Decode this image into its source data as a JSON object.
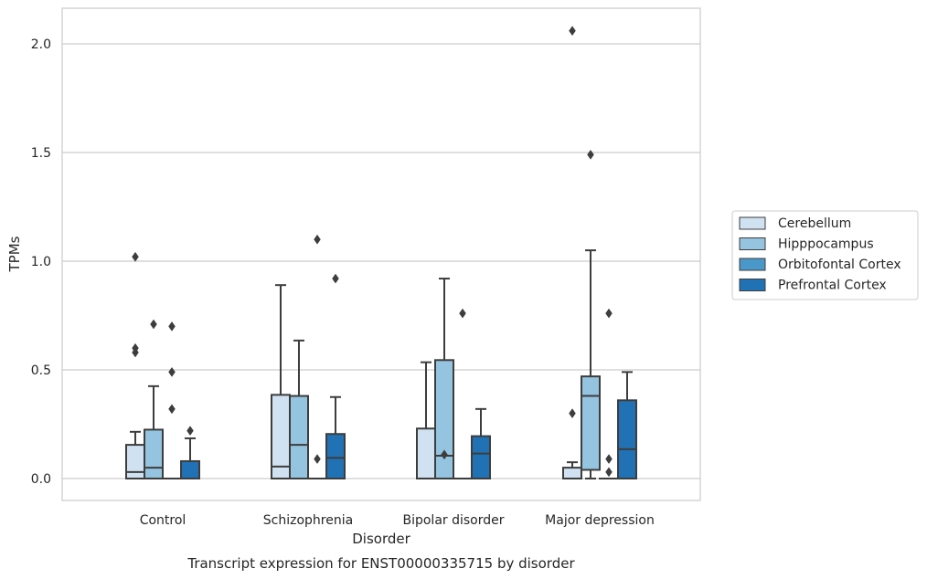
{
  "chart_data": {
    "type": "box",
    "title": "",
    "caption": "Transcript expression for ENST00000335715 by disorder",
    "xlabel": "Disorder",
    "ylabel": "TPMs",
    "ylim": [
      -0.1,
      2.165
    ],
    "yticks": [
      "0.0",
      "0.5",
      "1.0",
      "1.5",
      "2.0"
    ],
    "ytick_values": [
      0.0,
      0.5,
      1.0,
      1.5,
      2.0
    ],
    "grid": "horizontal",
    "legend_position": "right",
    "categories": [
      "Control",
      "Schizophrenia",
      "Bipolar disorder",
      "Major depression"
    ],
    "series": [
      {
        "name": "Cerebellum",
        "color": "#d0e1f2",
        "boxes": [
          {
            "q1": 0.0,
            "median": 0.03,
            "q3": 0.155,
            "whislo": 0.0,
            "whishi": 0.215,
            "fliers": [
              0.58,
              0.6,
              1.02
            ]
          },
          {
            "q1": 0.0,
            "median": 0.055,
            "q3": 0.385,
            "whislo": 0.0,
            "whishi": 0.89,
            "fliers": []
          },
          {
            "q1": 0.0,
            "median": 0.0,
            "q3": 0.23,
            "whislo": 0.0,
            "whishi": 0.535,
            "fliers": []
          },
          {
            "q1": 0.0,
            "median": 0.0,
            "q3": 0.05,
            "whislo": 0.0,
            "whishi": 0.075,
            "fliers": [
              0.3,
              2.06
            ]
          }
        ]
      },
      {
        "name": "Hipppocampus",
        "color": "#94c4df",
        "boxes": [
          {
            "q1": 0.0,
            "median": 0.05,
            "q3": 0.225,
            "whislo": 0.0,
            "whishi": 0.425,
            "fliers": [
              0.71
            ]
          },
          {
            "q1": 0.0,
            "median": 0.155,
            "q3": 0.38,
            "whislo": 0.0,
            "whishi": 0.635,
            "fliers": []
          },
          {
            "q1": 0.0,
            "median": 0.105,
            "q3": 0.545,
            "whislo": 0.0,
            "whishi": 0.92,
            "fliers": [
              0.11
            ]
          },
          {
            "q1": 0.04,
            "median": 0.38,
            "q3": 0.47,
            "whislo": 0.0,
            "whishi": 1.05,
            "fliers": [
              1.49
            ]
          }
        ]
      },
      {
        "name": "Orbitofontal Cortex",
        "color": "#4a98c9",
        "boxes": [
          {
            "q1": 0.0,
            "median": 0.0,
            "q3": 0.0,
            "whislo": 0.0,
            "whishi": 0.0,
            "fliers": [
              0.32,
              0.49,
              0.7
            ]
          },
          {
            "q1": 0.0,
            "median": 0.0,
            "q3": 0.0,
            "whislo": 0.0,
            "whishi": 0.0,
            "fliers": [
              0.09,
              1.1
            ]
          },
          {
            "q1": 0.0,
            "median": 0.0,
            "q3": 0.0,
            "whislo": 0.0,
            "whishi": 0.0,
            "fliers": [
              0.76
            ]
          },
          {
            "q1": 0.0,
            "median": 0.0,
            "q3": 0.0,
            "whislo": 0.0,
            "whishi": 0.0,
            "fliers": [
              0.03,
              0.09,
              0.76
            ]
          }
        ]
      },
      {
        "name": "Prefrontal Cortex",
        "color": "#2171b5",
        "boxes": [
          {
            "q1": 0.0,
            "median": 0.0,
            "q3": 0.08,
            "whislo": 0.0,
            "whishi": 0.185,
            "fliers": [
              0.22
            ]
          },
          {
            "q1": 0.0,
            "median": 0.095,
            "q3": 0.205,
            "whislo": 0.0,
            "whishi": 0.375,
            "fliers": [
              0.92
            ]
          },
          {
            "q1": 0.0,
            "median": 0.115,
            "q3": 0.195,
            "whislo": 0.0,
            "whishi": 0.32,
            "fliers": []
          },
          {
            "q1": 0.0,
            "median": 0.135,
            "q3": 0.36,
            "whislo": 0.0,
            "whishi": 0.49,
            "fliers": []
          }
        ]
      }
    ]
  }
}
